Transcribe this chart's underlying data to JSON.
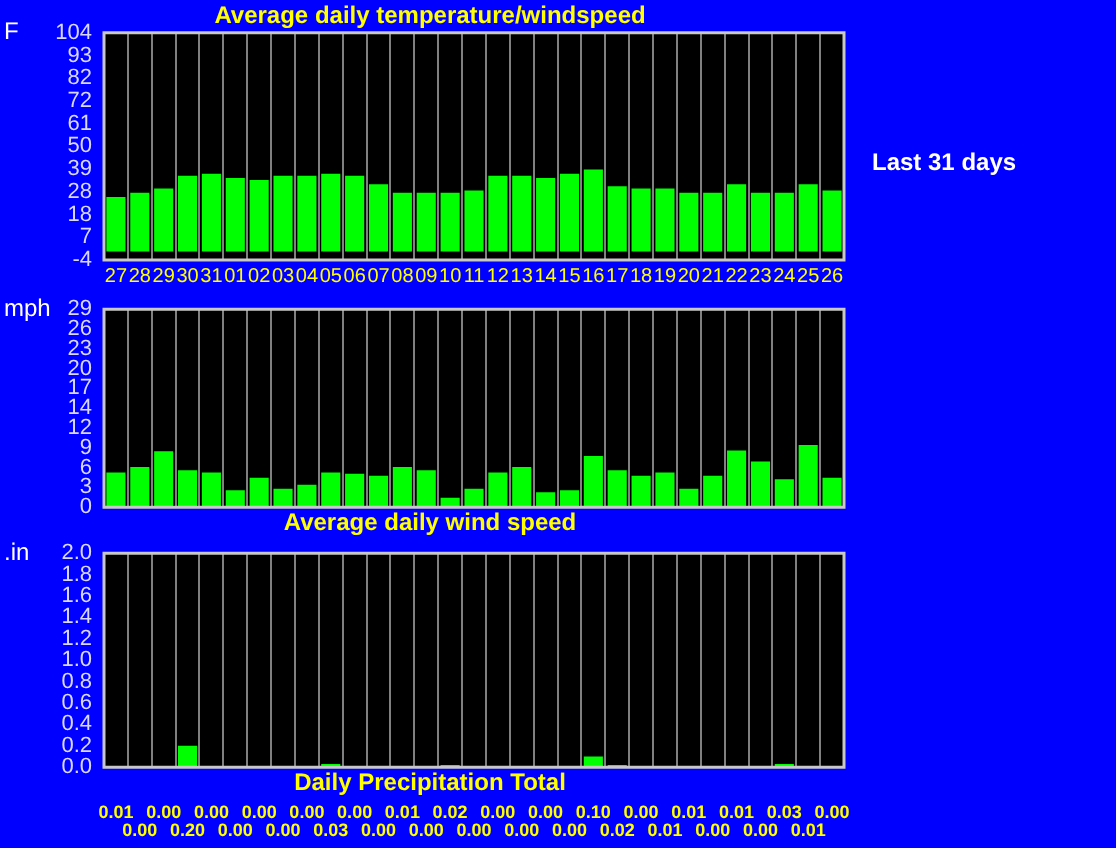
{
  "chart_data": [
    {
      "type": "bar",
      "title": "Average daily temperature/windspeed",
      "ylabel": "F",
      "annotations": [
        "Last 31 days"
      ],
      "categories": [
        "27",
        "28",
        "29",
        "30",
        "31",
        "01",
        "02",
        "03",
        "04",
        "05",
        "06",
        "07",
        "08",
        "09",
        "10",
        "11",
        "12",
        "13",
        "14",
        "15",
        "16",
        "17",
        "18",
        "19",
        "20",
        "21",
        "22",
        "23",
        "24",
        "25",
        "26"
      ],
      "values": [
        26,
        28,
        30,
        36,
        37,
        35,
        34,
        36,
        36,
        37,
        36,
        32,
        28,
        28,
        28,
        29,
        36,
        36,
        35,
        37,
        39,
        31,
        30,
        30,
        28,
        28,
        32,
        28,
        28,
        32,
        29
      ],
      "color": "#00ff00",
      "ylim": [
        -4,
        104
      ],
      "yticks": [
        {
          "value": -4,
          "label": "-4"
        },
        {
          "value": 6.8,
          "label": "7"
        },
        {
          "value": 17.6,
          "label": "18"
        },
        {
          "value": 28.4,
          "label": "28"
        },
        {
          "value": 39.2,
          "label": "39"
        },
        {
          "value": 50,
          "label": "50"
        },
        {
          "value": 60.8,
          "label": "61"
        },
        {
          "value": 71.6,
          "label": "72"
        },
        {
          "value": 82.4,
          "label": "82"
        },
        {
          "value": 93.2,
          "label": "93"
        },
        {
          "value": 104,
          "label": "104"
        }
      ],
      "grid": "x"
    },
    {
      "type": "bar",
      "title": "Average daily wind speed",
      "ylabel": "mph",
      "categories": [
        "27",
        "28",
        "29",
        "30",
        "31",
        "01",
        "02",
        "03",
        "04",
        "05",
        "06",
        "07",
        "08",
        "09",
        "10",
        "11",
        "12",
        "13",
        "14",
        "15",
        "16",
        "17",
        "18",
        "19",
        "20",
        "21",
        "22",
        "23",
        "24",
        "25",
        "26"
      ],
      "values": [
        5.1,
        5.9,
        8.2,
        5.4,
        5.1,
        2.5,
        4.3,
        2.7,
        3.3,
        5.1,
        4.9,
        4.6,
        5.9,
        5.4,
        1.4,
        2.7,
        5.1,
        5.9,
        2.2,
        2.5,
        7.5,
        5.4,
        4.6,
        5.1,
        2.7,
        4.6,
        8.3,
        6.7,
        4.1,
        9.1,
        4.3
      ],
      "color": "#00ff00",
      "ylim": [
        0,
        29
      ],
      "yticks": [
        0,
        {
          "value": 2.9,
          "label": "3"
        },
        {
          "value": 5.8,
          "label": "6"
        },
        {
          "value": 8.7,
          "label": "9"
        },
        {
          "value": 11.6,
          "label": "12"
        },
        {
          "value": 14.5,
          "label": "14"
        },
        {
          "value": 17.4,
          "label": "17"
        },
        {
          "value": 20.3,
          "label": "20"
        },
        {
          "value": 23.2,
          "label": "23"
        },
        {
          "value": 26.1,
          "label": "26"
        },
        29
      ],
      "grid": "x",
      "tick_labels": "y"
    },
    {
      "type": "bar",
      "title": "Daily Precipitation Total",
      "ylabel": ".in",
      "categories": [
        "27",
        "28",
        "29",
        "30",
        "31",
        "01",
        "02",
        "03",
        "04",
        "05",
        "06",
        "07",
        "08",
        "09",
        "10",
        "11",
        "12",
        "13",
        "14",
        "15",
        "16",
        "17",
        "18",
        "19",
        "20",
        "21",
        "22",
        "23",
        "24",
        "25",
        "26"
      ],
      "values": [
        0.01,
        0,
        0,
        0.2,
        0,
        0,
        0,
        0,
        0,
        0.03,
        0,
        0,
        0.01,
        0,
        0.02,
        0,
        0,
        0,
        0,
        0,
        0.1,
        0.02,
        0,
        0.01,
        0.01,
        0,
        0.01,
        0,
        0.03,
        0.01,
        0
      ],
      "value_labels": [
        "0.01",
        "0.00",
        "0.00",
        "0.20",
        "0.00",
        "0.00",
        "0.00",
        "0.00",
        "0.00",
        "0.03",
        "0.00",
        "0.00",
        "0.01",
        "0.00",
        "0.02",
        "0.00",
        "0.00",
        "0.00",
        "0.00",
        "0.00",
        "0.10",
        "0.02",
        "0.00",
        "0.01",
        "0.01",
        "0.00",
        "0.01",
        "0.00",
        "0.03",
        "0.01",
        "0.00"
      ],
      "color": "#00ff00",
      "ylim": [
        0,
        2
      ],
      "yticks": [
        {
          "value": 0,
          "label": "0.0"
        },
        {
          "value": 0.2,
          "label": "0.2"
        },
        {
          "value": 0.4,
          "label": "0.4"
        },
        {
          "value": 0.6,
          "label": "0.6"
        },
        {
          "value": 0.8,
          "label": "0.8"
        },
        {
          "value": 1,
          "label": "1.0"
        },
        {
          "value": 1.2,
          "label": "1.2"
        },
        {
          "value": 1.4,
          "label": "1.4"
        },
        {
          "value": 1.6,
          "label": "1.6"
        },
        {
          "value": 1.8,
          "label": "1.8"
        },
        {
          "value": 2,
          "label": "2.0"
        }
      ],
      "grid": "x",
      "tick_labels": "y"
    }
  ]
}
